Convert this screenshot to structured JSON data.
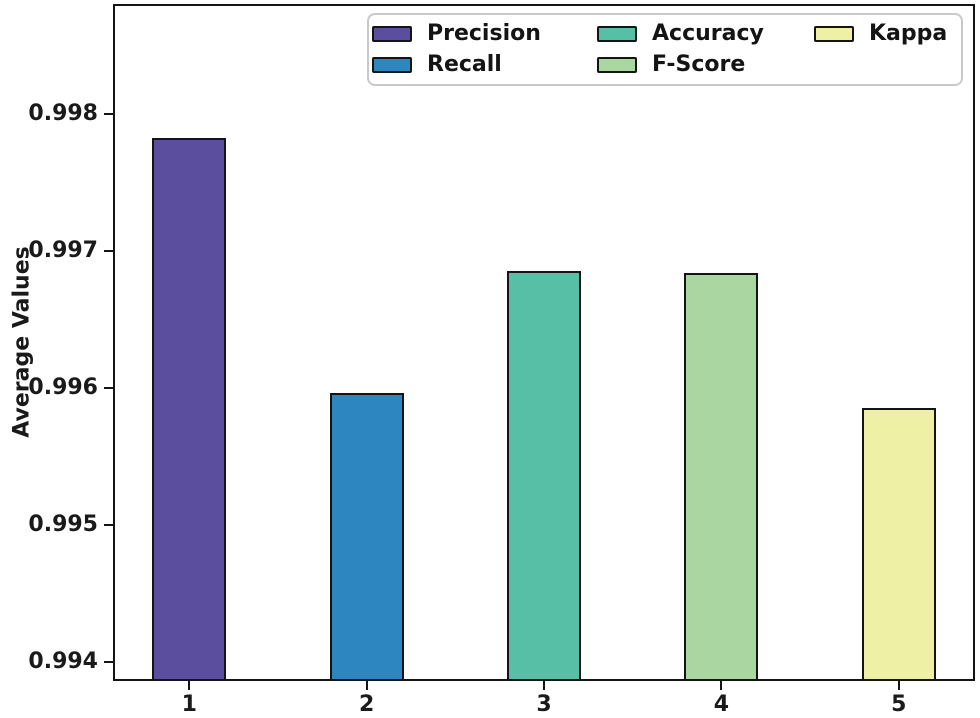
{
  "figure": {
    "background": "#ffffff",
    "frame_color": "#141414"
  },
  "chart_data": {
    "type": "bar",
    "title": "",
    "xlabel": "",
    "ylabel": "Average Values",
    "categories": [
      "1",
      "2",
      "3",
      "4",
      "5"
    ],
    "series": [
      {
        "name": "Precision",
        "x": 1,
        "value": 0.99782,
        "color": "#5c4e9f"
      },
      {
        "name": "Recall",
        "x": 2,
        "value": 0.99596,
        "color": "#2e86c1"
      },
      {
        "name": "Accuracy",
        "x": 3,
        "value": 0.99685,
        "color": "#57bfa5"
      },
      {
        "name": "F-Score",
        "x": 4,
        "value": 0.99684,
        "color": "#aad6a1"
      },
      {
        "name": "Kappa",
        "x": 5,
        "value": 0.99585,
        "color": "#eef0a6"
      }
    ],
    "ytick_labels": [
      "0.998",
      "0.997",
      "0.996",
      "0.995",
      "0.994"
    ],
    "ytick_values": [
      0.998,
      0.997,
      0.996,
      0.995,
      0.994
    ],
    "ylim": [
      0.99386,
      0.9988
    ],
    "xlim": [
      0.57,
      5.43
    ],
    "bar_width_data_units": 0.417,
    "bar_edge_color": "#141414",
    "grid": false,
    "legend": {
      "position": "upper right",
      "columns": 3,
      "column_layout": [
        [
          "Precision",
          "Recall"
        ],
        [
          "Accuracy",
          "F-Score"
        ],
        [
          "Kappa"
        ]
      ],
      "entries": [
        "Precision",
        "Recall",
        "Accuracy",
        "F-Score",
        "Kappa"
      ]
    }
  }
}
